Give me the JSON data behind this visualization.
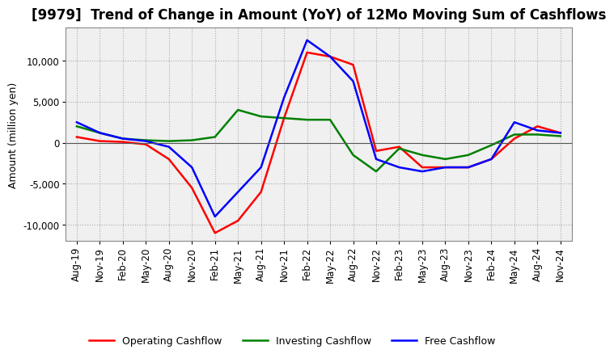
{
  "title": "[9979]  Trend of Change in Amount (YoY) of 12Mo Moving Sum of Cashflows",
  "ylabel": "Amount (million yen)",
  "x_labels": [
    "Aug-19",
    "Nov-19",
    "Feb-20",
    "May-20",
    "Aug-20",
    "Nov-20",
    "Feb-21",
    "May-21",
    "Aug-21",
    "Nov-21",
    "Feb-22",
    "May-22",
    "Aug-22",
    "Nov-22",
    "Feb-23",
    "May-23",
    "Aug-23",
    "Nov-23",
    "Feb-24",
    "May-24",
    "Aug-24",
    "Nov-24"
  ],
  "operating": [
    700,
    200,
    100,
    -200,
    -2000,
    -5500,
    -11000,
    -9500,
    -6000,
    3000,
    11000,
    10500,
    9500,
    -1000,
    -500,
    -3000,
    -3000,
    -3000,
    -2000,
    500,
    2000,
    1200
  ],
  "investing": [
    2000,
    1200,
    500,
    300,
    200,
    300,
    700,
    4000,
    3200,
    3000,
    2800,
    2800,
    -1500,
    -3500,
    -700,
    -1500,
    -2000,
    -1500,
    -300,
    1000,
    1000,
    800
  ],
  "free": [
    2500,
    1200,
    500,
    200,
    -500,
    -3000,
    -9000,
    -6000,
    -3000,
    5500,
    12500,
    10500,
    7500,
    -2000,
    -3000,
    -3500,
    -3000,
    -3000,
    -2000,
    2500,
    1500,
    1200
  ],
  "operating_color": "#ff0000",
  "investing_color": "#008000",
  "free_color": "#0000ff",
  "ylim": [
    -12000,
    14000
  ],
  "yticks": [
    -10000,
    -5000,
    0,
    5000,
    10000
  ],
  "plot_bg_color": "#f0f0f0",
  "background_color": "#ffffff",
  "grid_color": "#aaaaaa",
  "title_fontsize": 12,
  "label_fontsize": 9,
  "tick_fontsize": 8.5
}
